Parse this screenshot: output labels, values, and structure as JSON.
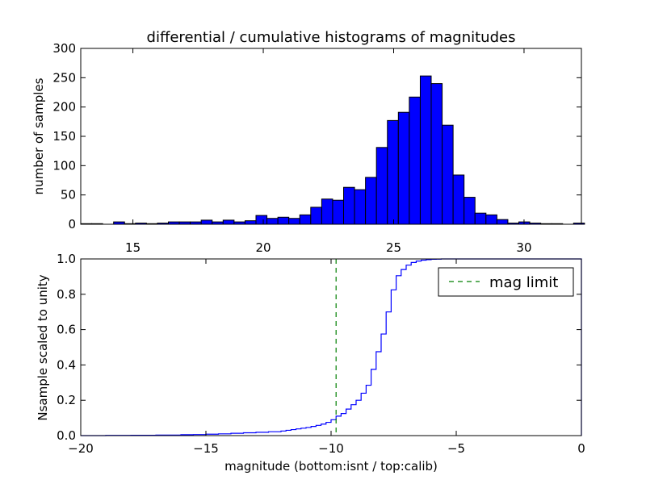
{
  "chart_data": [
    {
      "type": "bar",
      "title": "differential / cumulative histograms of magnitudes",
      "xlabel": "",
      "ylabel": "number of samples",
      "xlim": [
        13,
        32.2
      ],
      "ylim": [
        0,
        300
      ],
      "xticks": [
        15,
        20,
        25,
        30
      ],
      "yticks": [
        0,
        50,
        100,
        150,
        200,
        250,
        300
      ],
      "bin_width": 0.42,
      "bar_color": "#0000ff",
      "bins": [
        {
          "x": 13.0,
          "count": 1
        },
        {
          "x": 13.42,
          "count": 1
        },
        {
          "x": 13.84,
          "count": 0
        },
        {
          "x": 14.26,
          "count": 4
        },
        {
          "x": 14.68,
          "count": 1
        },
        {
          "x": 15.1,
          "count": 2
        },
        {
          "x": 15.52,
          "count": 1
        },
        {
          "x": 15.94,
          "count": 2
        },
        {
          "x": 16.36,
          "count": 4
        },
        {
          "x": 16.78,
          "count": 4
        },
        {
          "x": 17.2,
          "count": 4
        },
        {
          "x": 17.62,
          "count": 7
        },
        {
          "x": 18.04,
          "count": 4
        },
        {
          "x": 18.46,
          "count": 7
        },
        {
          "x": 18.88,
          "count": 4
        },
        {
          "x": 19.3,
          "count": 6
        },
        {
          "x": 19.72,
          "count": 15
        },
        {
          "x": 20.14,
          "count": 10
        },
        {
          "x": 20.56,
          "count": 12
        },
        {
          "x": 20.98,
          "count": 10
        },
        {
          "x": 21.4,
          "count": 16
        },
        {
          "x": 21.82,
          "count": 29
        },
        {
          "x": 22.24,
          "count": 43
        },
        {
          "x": 22.66,
          "count": 41
        },
        {
          "x": 23.08,
          "count": 63
        },
        {
          "x": 23.5,
          "count": 59
        },
        {
          "x": 23.92,
          "count": 80
        },
        {
          "x": 24.34,
          "count": 131
        },
        {
          "x": 24.76,
          "count": 177
        },
        {
          "x": 25.18,
          "count": 191
        },
        {
          "x": 25.6,
          "count": 217
        },
        {
          "x": 26.02,
          "count": 253
        },
        {
          "x": 26.44,
          "count": 240
        },
        {
          "x": 26.86,
          "count": 169
        },
        {
          "x": 27.28,
          "count": 84
        },
        {
          "x": 27.7,
          "count": 46
        },
        {
          "x": 28.12,
          "count": 19
        },
        {
          "x": 28.54,
          "count": 16
        },
        {
          "x": 28.96,
          "count": 8
        },
        {
          "x": 29.38,
          "count": 2
        },
        {
          "x": 29.8,
          "count": 4
        },
        {
          "x": 30.22,
          "count": 2
        },
        {
          "x": 30.64,
          "count": 1
        },
        {
          "x": 31.06,
          "count": 1
        },
        {
          "x": 31.48,
          "count": 0
        },
        {
          "x": 31.9,
          "count": 2
        }
      ]
    },
    {
      "type": "line",
      "title": "",
      "xlabel": "magnitude (bottom:isnt / top:calib)",
      "ylabel": "Nsample scaled to unity",
      "xlim": [
        -20,
        0
      ],
      "ylim": [
        0,
        1.0
      ],
      "xticks": [
        -20,
        -15,
        -10,
        -5,
        0
      ],
      "xtick_labels": [
        "−20",
        "−15",
        "−10",
        "−5",
        "0"
      ],
      "yticks": [
        0.0,
        0.2,
        0.4,
        0.6,
        0.8,
        1.0
      ],
      "ytick_labels": [
        "0.0",
        "0.2",
        "0.4",
        "0.6",
        "0.8",
        "1.0"
      ],
      "series": [
        {
          "name": "",
          "color": "#0000ff",
          "step": true,
          "x": [
            -20,
            -19,
            -18,
            -17,
            -16,
            -15.5,
            -15,
            -14.5,
            -14,
            -13.5,
            -13,
            -12.5,
            -12,
            -11.8,
            -11.6,
            -11.4,
            -11.2,
            -11,
            -10.8,
            -10.6,
            -10.4,
            -10.2,
            -10.0,
            -9.8,
            -9.6,
            -9.4,
            -9.2,
            -9.0,
            -8.8,
            -8.6,
            -8.4,
            -8.2,
            -8.0,
            -7.8,
            -7.6,
            -7.4,
            -7.2,
            -7.0,
            -6.8,
            -6.6,
            -6.4,
            -6.2,
            -6.0,
            -5.8,
            -5.6,
            -5.4,
            0
          ],
          "y": [
            0.0,
            0.001,
            0.002,
            0.003,
            0.005,
            0.006,
            0.008,
            0.01,
            0.013,
            0.016,
            0.019,
            0.022,
            0.026,
            0.03,
            0.034,
            0.038,
            0.042,
            0.046,
            0.052,
            0.058,
            0.065,
            0.075,
            0.09,
            0.11,
            0.125,
            0.15,
            0.175,
            0.2,
            0.24,
            0.285,
            0.375,
            0.475,
            0.575,
            0.7,
            0.825,
            0.905,
            0.94,
            0.965,
            0.98,
            0.988,
            0.993,
            0.996,
            0.998,
            0.999,
            1.0,
            1.0,
            1.0
          ]
        },
        {
          "name": "mag limit",
          "color": "#007f00",
          "dashed": true,
          "vline_x": -9.8
        }
      ],
      "legend_placement": "top-right"
    }
  ]
}
